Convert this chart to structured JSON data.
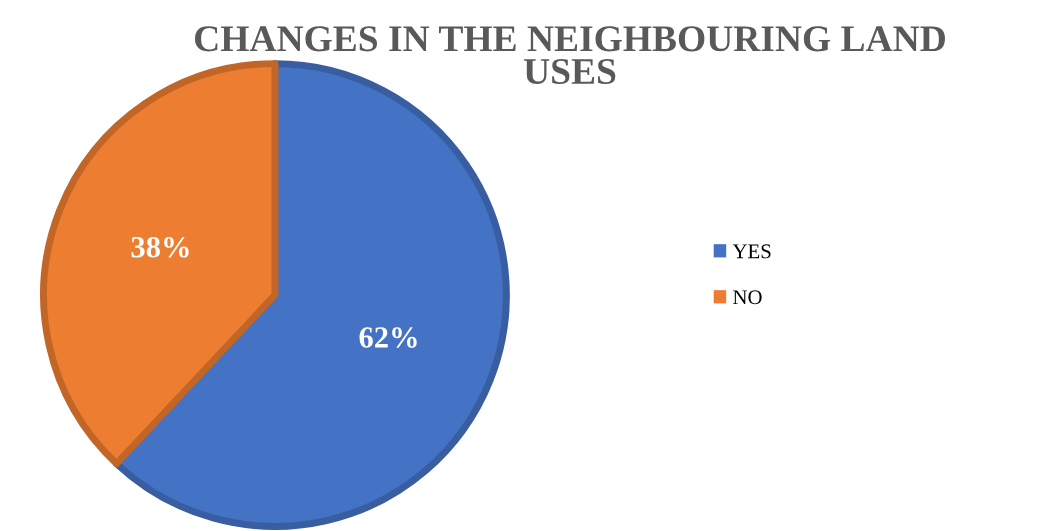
{
  "chart_data": {
    "type": "pie",
    "title": "CHANGES IN THE NEIGHBOURING LAND USES",
    "categories": [
      "YES",
      "NO"
    ],
    "values": [
      62,
      38
    ],
    "value_labels": [
      "62%",
      "38%"
    ],
    "colors": [
      "#4472c4",
      "#ed7d31"
    ],
    "legend": "right"
  }
}
